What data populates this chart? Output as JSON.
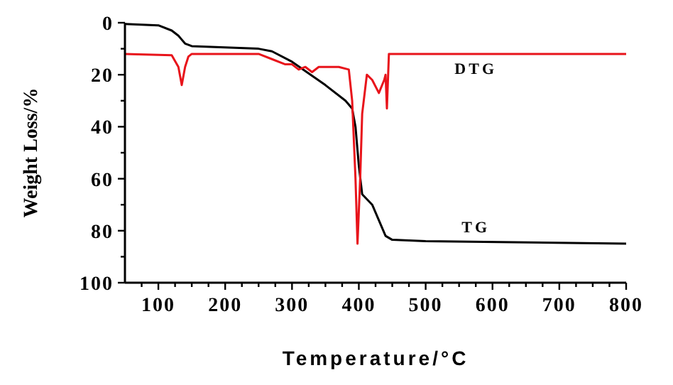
{
  "chart_data": {
    "type": "line",
    "xlabel": "Temperature/°C",
    "ylabel": "Weight Loss/%",
    "xlim": [
      50,
      800
    ],
    "ylim": [
      100,
      0
    ],
    "xticks": [
      {
        "value": 75,
        "label": null
      },
      100,
      {
        "value": 125,
        "label": null
      },
      {
        "value": 150,
        "label": null
      },
      {
        "value": 175,
        "label": null
      },
      200,
      {
        "value": 225,
        "label": null
      },
      {
        "value": 250,
        "label": null
      },
      {
        "value": 275,
        "label": null
      },
      300,
      {
        "value": 325,
        "label": null
      },
      {
        "value": 350,
        "label": null
      },
      {
        "value": 375,
        "label": null
      },
      400,
      {
        "value": 425,
        "label": null
      },
      {
        "value": 450,
        "label": null
      },
      {
        "value": 475,
        "label": null
      },
      500,
      {
        "value": 525,
        "label": null
      },
      {
        "value": 550,
        "label": null
      },
      {
        "value": 575,
        "label": null
      },
      600,
      {
        "value": 625,
        "label": null
      },
      {
        "value": 650,
        "label": null
      },
      {
        "value": 675,
        "label": null
      },
      700,
      {
        "value": 725,
        "label": null
      },
      {
        "value": 750,
        "label": null
      },
      {
        "value": 775,
        "label": null
      },
      800
    ],
    "yticks": [
      0,
      {
        "value": 10,
        "label": null
      },
      20,
      {
        "value": 30,
        "label": null
      },
      40,
      {
        "value": 50,
        "label": null
      },
      60,
      {
        "value": 70,
        "label": null
      },
      80,
      {
        "value": 90,
        "label": null
      },
      100
    ],
    "grid": false,
    "marker": "none",
    "line_style": "solid",
    "series": [
      {
        "name": "TG",
        "color": "#000000",
        "x": [
          50,
          100,
          120,
          130,
          140,
          150,
          200,
          250,
          270,
          300,
          350,
          380,
          390,
          395,
          400,
          405,
          420,
          430,
          440,
          450,
          500,
          800
        ],
        "values": [
          0.5,
          1,
          3,
          5,
          8,
          9,
          9.5,
          10,
          11,
          15,
          24,
          30,
          33,
          40,
          55,
          66,
          70,
          76,
          82,
          83.5,
          84,
          85
        ]
      },
      {
        "name": "DTG",
        "color": "#e8141b",
        "x": [
          50,
          120,
          130,
          135,
          140,
          145,
          150,
          250,
          270,
          290,
          300,
          310,
          320,
          330,
          340,
          370,
          385,
          390,
          395,
          398,
          402,
          405,
          412,
          420,
          430,
          438,
          440,
          442,
          445,
          800
        ],
        "values": [
          12,
          12.5,
          17,
          24,
          17,
          13,
          12,
          12,
          14,
          16,
          16,
          18,
          17,
          19,
          17,
          17,
          18,
          30,
          60,
          85,
          60,
          35,
          20,
          22,
          27,
          22,
          20,
          33,
          12,
          12
        ]
      }
    ]
  }
}
